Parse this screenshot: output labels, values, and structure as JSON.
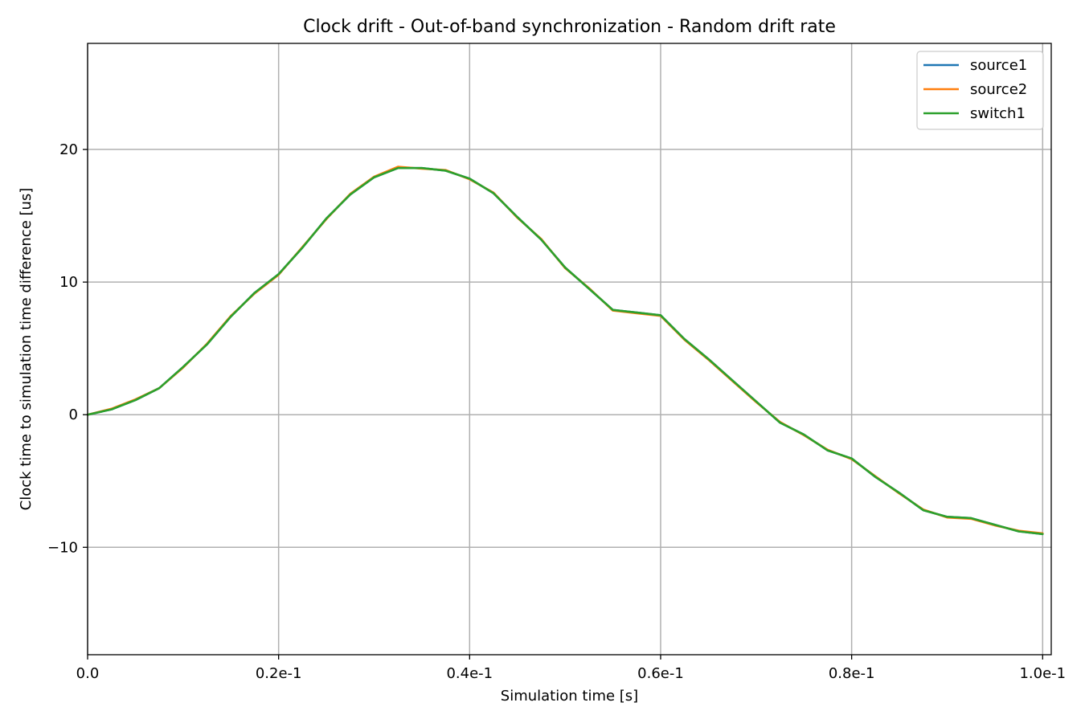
{
  "chart_data": {
    "type": "line",
    "title": "Clock drift - Out-of-band synchronization - Random drift rate",
    "xlabel": "Simulation time [s]",
    "ylabel": "Clock time to simulation time difference [us]",
    "xlim": [
      0.0,
      0.1009
    ],
    "ylim": [
      -18.1,
      28.0
    ],
    "grid": true,
    "legend_position": "top-right",
    "x_ticks": [
      {
        "value": 0.0,
        "label": "0.0"
      },
      {
        "value": 0.02,
        "label": "0.2e-1"
      },
      {
        "value": 0.04,
        "label": "0.4e-1"
      },
      {
        "value": 0.06,
        "label": "0.6e-1"
      },
      {
        "value": 0.08,
        "label": "0.8e-1"
      },
      {
        "value": 0.1,
        "label": "1.0e-1"
      }
    ],
    "y_ticks": [
      {
        "value": 20,
        "label": "20"
      },
      {
        "value": 10,
        "label": "10"
      },
      {
        "value": 0,
        "label": "0"
      },
      {
        "value": -10,
        "label": "−10"
      }
    ],
    "x": [
      0.0,
      0.0025,
      0.005,
      0.0075,
      0.01,
      0.0125,
      0.015,
      0.0175,
      0.02,
      0.0225,
      0.025,
      0.0275,
      0.03,
      0.0325,
      0.035,
      0.0375,
      0.04,
      0.0425,
      0.045,
      0.0475,
      0.05,
      0.0525,
      0.055,
      0.0575,
      0.06,
      0.0625,
      0.065,
      0.0675,
      0.07,
      0.0725,
      0.075,
      0.0775,
      0.08,
      0.0825,
      0.085,
      0.0875,
      0.09,
      0.0925,
      0.095,
      0.0975,
      0.1
    ],
    "series": [
      {
        "name": "source1",
        "color": "#1f77b4",
        "values": [
          0.0,
          0.4,
          1.1,
          2.0,
          3.6,
          5.3,
          7.4,
          9.2,
          10.6,
          12.6,
          14.8,
          16.6,
          17.9,
          18.6,
          18.6,
          18.4,
          17.8,
          16.7,
          14.9,
          13.2,
          11.1,
          9.5,
          7.9,
          7.7,
          7.5,
          5.7,
          4.2,
          2.6,
          1.0,
          -0.6,
          -1.5,
          -2.7,
          -3.3,
          -4.7,
          -5.9,
          -7.2,
          -7.7,
          -7.8,
          -8.3,
          -8.8,
          -9.0
        ]
      },
      {
        "name": "source2",
        "color": "#ff7f0e",
        "values": [
          0.0,
          0.45,
          1.15,
          2.0,
          3.55,
          5.35,
          7.45,
          9.15,
          10.55,
          12.65,
          14.75,
          16.65,
          17.95,
          18.7,
          18.55,
          18.45,
          17.75,
          16.75,
          14.85,
          13.25,
          11.05,
          9.55,
          7.85,
          7.65,
          7.45,
          5.65,
          4.15,
          2.55,
          0.95,
          -0.55,
          -1.55,
          -2.65,
          -3.35,
          -4.65,
          -5.95,
          -7.15,
          -7.75,
          -7.85,
          -8.35,
          -8.75,
          -8.95
        ]
      },
      {
        "name": "switch1",
        "color": "#2ca02c",
        "values": [
          0.0,
          0.4,
          1.1,
          2.0,
          3.6,
          5.3,
          7.4,
          9.2,
          10.6,
          12.6,
          14.8,
          16.6,
          17.9,
          18.6,
          18.6,
          18.4,
          17.8,
          16.7,
          14.9,
          13.2,
          11.1,
          9.5,
          7.9,
          7.7,
          7.5,
          5.7,
          4.2,
          2.6,
          1.0,
          -0.6,
          -1.5,
          -2.7,
          -3.3,
          -4.7,
          -5.9,
          -7.2,
          -7.7,
          -7.8,
          -8.3,
          -8.8,
          -9.0
        ]
      }
    ]
  }
}
